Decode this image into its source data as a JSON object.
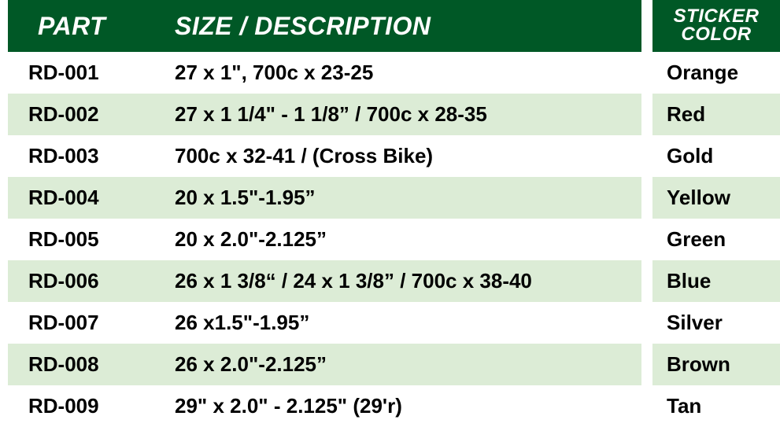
{
  "table": {
    "header_bg": "#005826",
    "header_text_color": "#ffffff",
    "row_odd_bg": "#ffffff",
    "row_even_bg": "#dcecd6",
    "text_color": "#000000",
    "header_font_style": "italic",
    "header_font_weight": "900",
    "body_font_weight": "700",
    "header_font_size": 32,
    "body_font_size": 26,
    "sticker_header_font_size": 24,
    "columns": {
      "part": "PART",
      "size": "SIZE / DESCRIPTION",
      "sticker_line1": "STICKER",
      "sticker_line2": "COLOR"
    },
    "rows": [
      {
        "part": "RD-001",
        "size": "27 x 1\", 700c x 23-25",
        "sticker": "Orange"
      },
      {
        "part": "RD-002",
        "size": "27 x 1 1/4\" - 1 1/8” / 700c x 28-35",
        "sticker": "Red"
      },
      {
        "part": "RD-003",
        "size": "700c x 32-41 / (Cross Bike)",
        "sticker": "Gold"
      },
      {
        "part": "RD-004",
        "size": "20 x 1.5\"-1.95”",
        "sticker": "Yellow"
      },
      {
        "part": "RD-005",
        "size": "20 x 2.0\"-2.125”",
        "sticker": "Green"
      },
      {
        "part": "RD-006",
        "size": "26 x 1 3/8“ / 24 x 1 3/8” / 700c x 38-40",
        "sticker": "Blue"
      },
      {
        "part": "RD-007",
        "size": "26 x1.5\"-1.95”",
        "sticker": "Silver"
      },
      {
        "part": "RD-008",
        "size": "26 x 2.0\"-2.125”",
        "sticker": "Brown"
      },
      {
        "part": "RD-009",
        "size": "29\" x 2.0\" - 2.125\" (29'r)",
        "sticker": "Tan"
      }
    ]
  }
}
